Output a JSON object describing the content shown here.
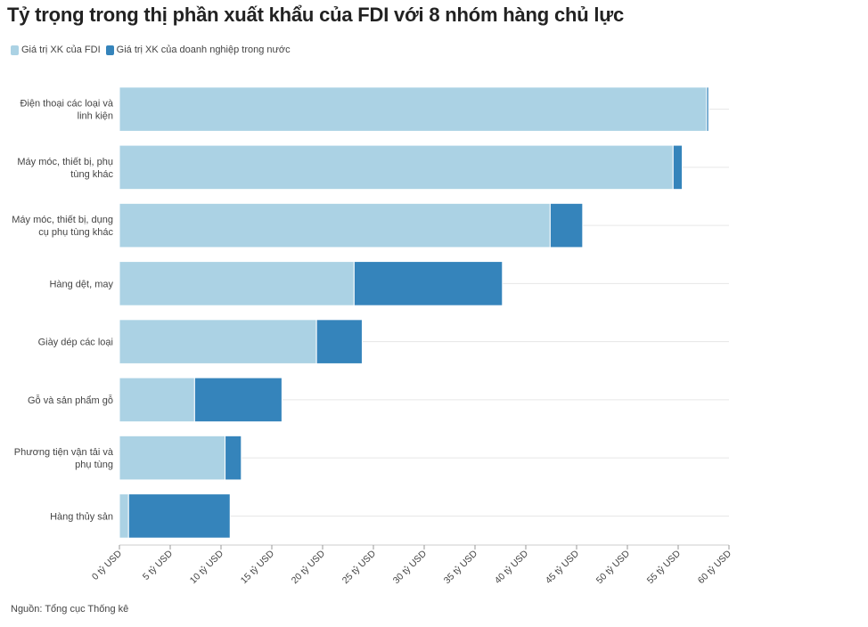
{
  "chart_data": {
    "type": "bar",
    "orientation": "horizontal",
    "stacked": true,
    "title": "Tỷ trọng trong thị phần xuất khẩu của FDI với 8 nhóm hàng chủ lực",
    "categories": [
      [
        "Điện thoại các loại và",
        "linh kiện"
      ],
      [
        "Máy móc, thiết bị, phụ",
        "tùng khác"
      ],
      [
        "Máy móc, thiết bị, dụng",
        "cụ phụ tùng khác"
      ],
      [
        "Hàng dệt, may"
      ],
      [
        "Giày dép các loại"
      ],
      [
        "Gỗ và sản phẩm gỗ"
      ],
      [
        "Phương tiện vận tải và",
        "phụ tùng"
      ],
      [
        "Hàng thủy sản"
      ]
    ],
    "series": [
      {
        "name": "Giá trị XK của FDI",
        "color": "#abd2e4",
        "values": [
          57.8,
          54.5,
          42.4,
          23.1,
          19.4,
          7.4,
          10.4,
          0.9
        ]
      },
      {
        "name": "Giá trị XK của doanh nghiệp trong nước",
        "color": "#3584bb",
        "values": [
          0.2,
          0.9,
          3.2,
          14.6,
          4.5,
          8.6,
          1.6,
          10.0
        ]
      }
    ],
    "xlim": [
      0,
      60
    ],
    "xticks": [
      "0 tỷ USD",
      "5 tỷ USD",
      "10 tỷ USD",
      "15 tỷ USD",
      "20 tỷ USD",
      "25 tỷ USD",
      "30 tỷ USD",
      "35 tỷ USD",
      "40 tỷ USD",
      "45 tỷ USD",
      "50 tỷ USD",
      "55 tỷ USD",
      "60 tỷ USD"
    ],
    "xtick_values": [
      0,
      5,
      10,
      15,
      20,
      25,
      30,
      35,
      40,
      45,
      50,
      55,
      60
    ],
    "legend_position": "top-left",
    "grid": true
  },
  "source": "Nguồn: Tổng cục Thống kê"
}
